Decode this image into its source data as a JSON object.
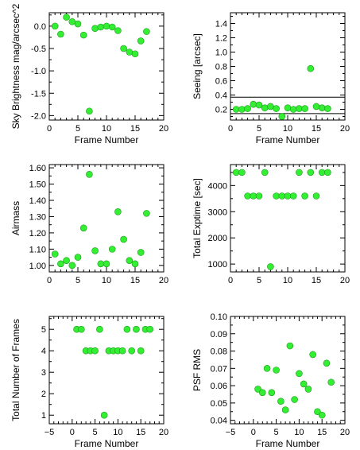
{
  "chart_data": [
    {
      "type": "scatter",
      "xlabel": "Frame Number",
      "ylabel": "Sky Brightness mag/arcsec^2",
      "xlim": [
        0,
        20
      ],
      "ylim": [
        -2.1,
        0.3
      ],
      "xticks": [
        0,
        5,
        10,
        15,
        20
      ],
      "xtick_labels": [
        "0",
        "5",
        "10",
        "15",
        "20"
      ],
      "yticks": [
        0,
        -0.5,
        -1,
        -1.5,
        -2
      ],
      "ytick_labels": [
        "0.0",
        "-0.5",
        "-1.0",
        "-1.5",
        "-2.0"
      ],
      "x": [
        1,
        2,
        3,
        4,
        5,
        6,
        7,
        8,
        9,
        10,
        11,
        12,
        13,
        14,
        15,
        16,
        17
      ],
      "y": [
        0.0,
        -0.18,
        0.2,
        0.1,
        0.05,
        -0.2,
        -1.9,
        -0.05,
        -0.02,
        0.0,
        -0.02,
        -0.1,
        -0.5,
        -0.58,
        -0.62,
        -0.33,
        -0.12
      ],
      "marker_color": "#33ee33",
      "grid": false
    },
    {
      "type": "scatter",
      "xlabel": "Frame Number",
      "ylabel": "Seeing [arcsec]",
      "xlim": [
        0,
        20
      ],
      "ylim": [
        0.05,
        1.55
      ],
      "xticks": [
        0,
        5,
        10,
        15,
        20
      ],
      "xtick_labels": [
        "0",
        "5",
        "10",
        "15",
        "20"
      ],
      "yticks": [
        0.2,
        0.4,
        0.6,
        0.8,
        1.0,
        1.2,
        1.4
      ],
      "ytick_labels": [
        "0.2",
        "0.4",
        "0.6",
        "0.8",
        "1.0",
        "1.2",
        "1.4"
      ],
      "x": [
        1,
        2,
        3,
        4,
        5,
        6,
        7,
        8,
        9,
        10,
        11,
        12,
        13,
        14,
        15,
        16,
        17
      ],
      "y": [
        0.2,
        0.2,
        0.21,
        0.27,
        0.26,
        0.22,
        0.24,
        0.21,
        0.1,
        0.22,
        0.2,
        0.21,
        0.21,
        0.77,
        0.24,
        0.22,
        0.21
      ],
      "hlines": [
        0.37,
        0.14
      ],
      "marker_color": "#33ee33",
      "grid": false
    },
    {
      "type": "scatter",
      "xlabel": "",
      "ylabel": "Airmass",
      "xlim": [
        0,
        20
      ],
      "ylim": [
        0.96,
        1.62
      ],
      "xticks": [
        0,
        5,
        10,
        15,
        20
      ],
      "xtick_labels": [
        "0",
        "5",
        "10",
        "15",
        "20"
      ],
      "yticks": [
        1.0,
        1.1,
        1.2,
        1.3,
        1.4,
        1.5,
        1.6
      ],
      "ytick_labels": [
        "1.00",
        "1.10",
        "1.20",
        "1.30",
        "1.40",
        "1.50",
        "1.60"
      ],
      "x": [
        1,
        2,
        3,
        4,
        5,
        6,
        7,
        8,
        9,
        10,
        11,
        12,
        13,
        14,
        15,
        16,
        17
      ],
      "y": [
        1.07,
        1.01,
        1.03,
        1.0,
        1.05,
        1.23,
        1.56,
        1.09,
        1.01,
        1.01,
        1.1,
        1.33,
        1.16,
        1.03,
        1.01,
        1.08,
        1.32
      ],
      "marker_color": "#33ee33",
      "grid": false
    },
    {
      "type": "scatter",
      "xlabel": "",
      "ylabel": "Total Exptime [sec]",
      "xlim": [
        0,
        20
      ],
      "ylim": [
        700,
        4800
      ],
      "xticks": [
        0,
        5,
        10,
        15,
        20
      ],
      "xtick_labels": [
        "0",
        "5",
        "10",
        "15",
        "20"
      ],
      "yticks": [
        1000,
        2000,
        3000,
        4000
      ],
      "ytick_labels": [
        "1000",
        "2000",
        "3000",
        "4000"
      ],
      "x": [
        1,
        2,
        3,
        4,
        5,
        6,
        7,
        8,
        9,
        10,
        11,
        12,
        13,
        14,
        15,
        16,
        17
      ],
      "y": [
        4500,
        4500,
        3600,
        3600,
        3600,
        4500,
        900,
        3600,
        3600,
        3600,
        3600,
        4500,
        3600,
        4500,
        3600,
        4500,
        4500
      ],
      "marker_color": "#33ee33",
      "grid": false
    },
    {
      "type": "scatter",
      "xlabel": "Frame Number",
      "ylabel": "Total Number of Frames",
      "xlim": [
        -5,
        20
      ],
      "ylim": [
        0.6,
        5.6
      ],
      "xticks": [
        -5,
        0,
        5,
        10,
        15,
        20
      ],
      "xtick_labels": [
        "−5",
        "0",
        "5",
        "10",
        "15",
        "20"
      ],
      "yticks": [
        1,
        2,
        3,
        4,
        5
      ],
      "ytick_labels": [
        "1",
        "2",
        "3",
        "4",
        "5"
      ],
      "x": [
        1,
        2,
        3,
        4,
        5,
        6,
        7,
        8,
        9,
        10,
        11,
        12,
        13,
        14,
        15,
        16,
        17
      ],
      "y": [
        5,
        5,
        4,
        4,
        4,
        5,
        1,
        4,
        4,
        4,
        4,
        5,
        4,
        5,
        4,
        5,
        5
      ],
      "marker_color": "#33ee33",
      "grid": false
    },
    {
      "type": "scatter",
      "xlabel": "Frame Number",
      "ylabel": "PSF RMS",
      "xlim": [
        -5,
        20
      ],
      "ylim": [
        0.038,
        0.1
      ],
      "xticks": [
        -5,
        0,
        5,
        10,
        15,
        20
      ],
      "xtick_labels": [
        "−5",
        "0",
        "5",
        "10",
        "15",
        "20"
      ],
      "yticks": [
        0.04,
        0.05,
        0.06,
        0.07,
        0.08,
        0.09,
        0.1
      ],
      "ytick_labels": [
        "0.04",
        "0.05",
        "0.06",
        "0.07",
        "0.08",
        "0.09",
        "0.10"
      ],
      "x": [
        1,
        2,
        3,
        4,
        5,
        6,
        7,
        8,
        9,
        10,
        11,
        12,
        13,
        14,
        15,
        16,
        17
      ],
      "y": [
        0.058,
        0.056,
        0.07,
        0.056,
        0.069,
        0.051,
        0.046,
        0.083,
        0.052,
        0.067,
        0.061,
        0.058,
        0.078,
        0.045,
        0.043,
        0.073,
        0.062
      ],
      "marker_color": "#33ee33",
      "grid": false
    }
  ]
}
